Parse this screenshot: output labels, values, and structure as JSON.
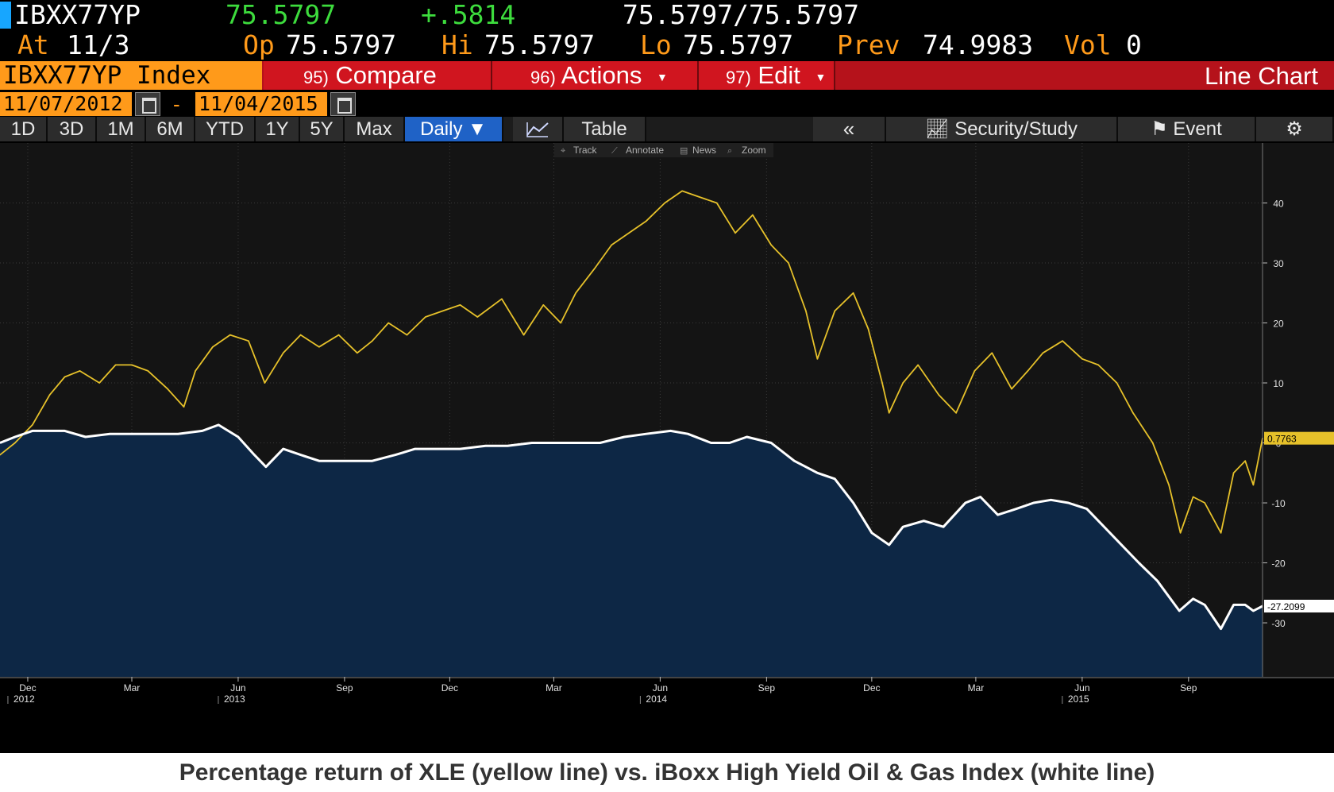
{
  "quote": {
    "ticker": "IBXX77YP",
    "last": "75.5797",
    "change": "+.5814",
    "bid_ask": "75.5797/75.5797",
    "at_label": "At",
    "at_value": "11/3",
    "op_label": "Op",
    "op_value": "75.5797",
    "hi_label": "Hi",
    "hi_value": "75.5797",
    "lo_label": "Lo",
    "lo_value": "75.5797",
    "prev_label": "Prev",
    "prev_value": "74.9983",
    "vol_label": "Vol",
    "vol_value": "0"
  },
  "menu": {
    "security": "IBXX77YP Index",
    "compare_num": "95)",
    "compare": "Compare",
    "actions_num": "96)",
    "actions": "Actions",
    "edit_num": "97)",
    "edit": "Edit",
    "chart_type": "Line Chart"
  },
  "date_range": {
    "start": "11/07/2012",
    "separator": "-",
    "end": "11/04/2015"
  },
  "toolbar": {
    "periods": [
      "1D",
      "3D",
      "1M",
      "6M",
      "YTD",
      "1Y",
      "5Y",
      "Max"
    ],
    "frequency": "Daily ▼",
    "table": "Table",
    "collapse": "«",
    "security_study": "Security/Study",
    "event": "Event"
  },
  "chart_tools": {
    "track": "Track",
    "annotate": "Annotate",
    "news": "News",
    "zoom": "Zoom"
  },
  "colors": {
    "xle": "#e6c12a",
    "ibxx": "#ffffff",
    "ibxx_fill": "#0d2745",
    "orange": "#ff9a1a",
    "menu_red": "#d0151f"
  },
  "chart_data": {
    "type": "line",
    "title": "",
    "xlabel": "",
    "ylabel": "",
    "x_range": [
      "2012-11-07",
      "2015-11-04"
    ],
    "ylim": [
      -39,
      50
    ],
    "y_ticks": [
      40,
      30,
      20,
      10,
      0,
      -10,
      -20,
      -30
    ],
    "x_ticks": [
      {
        "label": "Dec",
        "year": "2012",
        "date": "2012-12-01"
      },
      {
        "label": "Mar",
        "year": "",
        "date": "2013-03-01"
      },
      {
        "label": "Jun",
        "year": "2013",
        "date": "2013-06-01"
      },
      {
        "label": "Sep",
        "year": "",
        "date": "2013-09-01"
      },
      {
        "label": "Dec",
        "year": "",
        "date": "2013-12-01"
      },
      {
        "label": "Mar",
        "year": "",
        "date": "2014-03-01"
      },
      {
        "label": "Jun",
        "year": "2014",
        "date": "2014-06-01"
      },
      {
        "label": "Sep",
        "year": "",
        "date": "2014-09-01"
      },
      {
        "label": "Dec",
        "year": "",
        "date": "2014-12-01"
      },
      {
        "label": "Mar",
        "year": "",
        "date": "2015-03-01"
      },
      {
        "label": "Jun",
        "year": "2015",
        "date": "2015-06-01"
      },
      {
        "label": "Sep",
        "year": "",
        "date": "2015-09-01"
      }
    ],
    "last_value_labels": [
      {
        "series": "xle",
        "text": "0.7763",
        "value": 0.7763
      },
      {
        "series": "ibxx",
        "text": "-27.2099",
        "value": -27.2099
      }
    ],
    "series": [
      {
        "key": "xle",
        "x": [
          "2012-11-07",
          "2012-11-20",
          "2012-12-05",
          "2012-12-20",
          "2013-01-02",
          "2013-01-15",
          "2013-02-01",
          "2013-02-15",
          "2013-03-01",
          "2013-03-15",
          "2013-04-01",
          "2013-04-15",
          "2013-04-25",
          "2013-05-10",
          "2013-05-25",
          "2013-06-10",
          "2013-06-24",
          "2013-07-10",
          "2013-07-25",
          "2013-08-10",
          "2013-08-27",
          "2013-09-12",
          "2013-09-25",
          "2013-10-09",
          "2013-10-25",
          "2013-11-10",
          "2013-11-25",
          "2013-12-10",
          "2013-12-25",
          "2014-01-15",
          "2014-02-03",
          "2014-02-20",
          "2014-03-07",
          "2014-03-20",
          "2014-04-05",
          "2014-04-20",
          "2014-05-05",
          "2014-05-20",
          "2014-06-05",
          "2014-06-20",
          "2014-07-05",
          "2014-07-20",
          "2014-08-05",
          "2014-08-20",
          "2014-09-05",
          "2014-09-20",
          "2014-10-05",
          "2014-10-15",
          "2014-10-30",
          "2014-11-15",
          "2014-11-28",
          "2014-12-10",
          "2014-12-16",
          "2014-12-28",
          "2015-01-10",
          "2015-01-28",
          "2015-02-12",
          "2015-02-28",
          "2015-03-15",
          "2015-04-01",
          "2015-04-15",
          "2015-04-28",
          "2015-05-15",
          "2015-06-01",
          "2015-06-15",
          "2015-07-01",
          "2015-07-15",
          "2015-08-01",
          "2015-08-15",
          "2015-08-25",
          "2015-09-05",
          "2015-09-15",
          "2015-09-29",
          "2015-10-10",
          "2015-10-20",
          "2015-10-27",
          "2015-11-04"
        ],
        "values": [
          -2,
          0,
          3,
          8,
          11,
          12,
          10,
          13,
          13,
          12,
          9,
          6,
          12,
          16,
          18,
          17,
          10,
          15,
          18,
          16,
          18,
          15,
          17,
          20,
          18,
          21,
          22,
          23,
          21,
          24,
          18,
          23,
          20,
          25,
          29,
          33,
          35,
          37,
          40,
          42,
          41,
          40,
          35,
          38,
          33,
          30,
          22,
          14,
          22,
          25,
          19,
          10,
          5,
          10,
          13,
          8,
          5,
          12,
          15,
          9,
          12,
          15,
          17,
          14,
          13,
          10,
          5,
          0,
          -7,
          -15,
          -9,
          -10,
          -15,
          -5,
          -3,
          -7,
          0.7763
        ]
      },
      {
        "key": "ibxx",
        "x": [
          "2012-11-07",
          "2012-11-20",
          "2012-12-05",
          "2012-12-20",
          "2013-01-02",
          "2013-01-20",
          "2013-02-10",
          "2013-03-01",
          "2013-03-20",
          "2013-04-10",
          "2013-05-01",
          "2013-05-15",
          "2013-06-01",
          "2013-06-15",
          "2013-06-25",
          "2013-07-10",
          "2013-07-25",
          "2013-08-10",
          "2013-08-25",
          "2013-09-10",
          "2013-09-25",
          "2013-10-15",
          "2013-11-01",
          "2013-11-20",
          "2013-12-10",
          "2014-01-01",
          "2014-01-20",
          "2014-02-10",
          "2014-03-01",
          "2014-03-20",
          "2014-04-10",
          "2014-05-01",
          "2014-05-20",
          "2014-06-10",
          "2014-06-25",
          "2014-07-15",
          "2014-07-31",
          "2014-08-15",
          "2014-09-05",
          "2014-09-25",
          "2014-10-15",
          "2014-10-30",
          "2014-11-15",
          "2014-12-01",
          "2014-12-16",
          "2014-12-28",
          "2015-01-15",
          "2015-02-01",
          "2015-02-20",
          "2015-03-05",
          "2015-03-20",
          "2015-04-05",
          "2015-04-20",
          "2015-05-05",
          "2015-05-20",
          "2015-06-05",
          "2015-06-20",
          "2015-07-05",
          "2015-07-20",
          "2015-08-05",
          "2015-08-24",
          "2015-09-05",
          "2015-09-15",
          "2015-09-29",
          "2015-10-10",
          "2015-10-20",
          "2015-10-27",
          "2015-11-04"
        ],
        "values": [
          0,
          1,
          2,
          2,
          2,
          1,
          1.5,
          1.5,
          1.5,
          1.5,
          2,
          3,
          1,
          -2,
          -4,
          -1,
          -2,
          -3,
          -3,
          -3,
          -3,
          -2,
          -1,
          -1,
          -1,
          -0.5,
          -0.5,
          0,
          0,
          0,
          0,
          1,
          1.5,
          2,
          1.5,
          0,
          0,
          1,
          0,
          -3,
          -5,
          -6,
          -10,
          -15,
          -17,
          -14,
          -13,
          -14,
          -10,
          -9,
          -12,
          -11,
          -10,
          -9.5,
          -10,
          -11,
          -14,
          -17,
          -20,
          -23,
          -28,
          -26,
          -27,
          -31,
          -27,
          -27,
          -28,
          -27.2099
        ]
      }
    ]
  },
  "caption": "Percentage return of XLE (yellow line) vs. iBoxx High Yield Oil & Gas Index (white line)"
}
